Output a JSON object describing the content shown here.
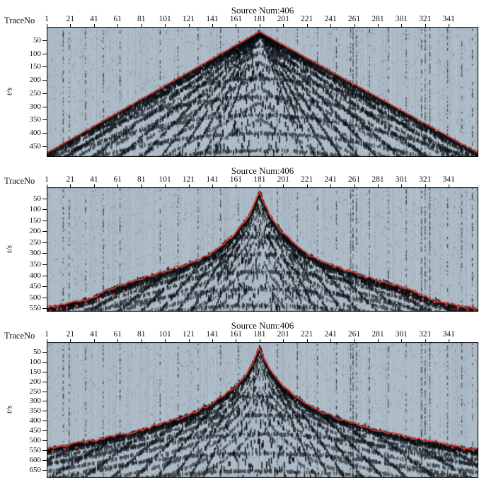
{
  "figure": {
    "background": "#ffffff",
    "plot_bg": "#b7c5d1",
    "pick_color": "#e23b2e",
    "ink_color": "#0a0f14"
  },
  "chart_data": [
    {
      "type": "heatmap",
      "description": "Seismic shot gather (wiggle-trace variable-area display) with straight red first-break line forming an inverted V from the source at trace 181",
      "title": "Source Num:406",
      "xlabel": "TraceNo",
      "ylabel": "t/s",
      "x_ticks": [
        1,
        21,
        41,
        61,
        81,
        101,
        121,
        141,
        161,
        181,
        201,
        221,
        241,
        261,
        281,
        301,
        321,
        341
      ],
      "x_range": [
        1,
        366
      ],
      "y_ticks": [
        50,
        100,
        150,
        200,
        250,
        300,
        350,
        400,
        450
      ],
      "y_range": [
        0,
        490
      ],
      "apex_trace": 181,
      "pick_style": "straight-line",
      "first_break_picks": [
        [
          1,
          475
        ],
        [
          181,
          18
        ],
        [
          366,
          475
        ]
      ],
      "outlier_picks": []
    },
    {
      "type": "heatmap",
      "description": "Seismic shot gather with irregular automatically picked first breaks (red) and scattered outlier picks near the far offsets",
      "title": "Source Num:406",
      "xlabel": "TraceNo",
      "ylabel": "t/s",
      "x_ticks": [
        1,
        21,
        41,
        61,
        81,
        101,
        121,
        141,
        161,
        181,
        201,
        221,
        241,
        261,
        281,
        301,
        321,
        341
      ],
      "x_range": [
        1,
        366
      ],
      "y_ticks": [
        50,
        100,
        150,
        200,
        250,
        300,
        350,
        400,
        450,
        500,
        550
      ],
      "y_range": [
        0,
        565
      ],
      "apex_trace": 181,
      "pick_style": "picked-irregular",
      "first_break_picks": [
        [
          1,
          545
        ],
        [
          11,
          537
        ],
        [
          21,
          524
        ],
        [
          31,
          514
        ],
        [
          41,
          497
        ],
        [
          51,
          467
        ],
        [
          61,
          447
        ],
        [
          71,
          431
        ],
        [
          81,
          413
        ],
        [
          91,
          398
        ],
        [
          101,
          382
        ],
        [
          111,
          365
        ],
        [
          121,
          347
        ],
        [
          131,
          326
        ],
        [
          141,
          298
        ],
        [
          151,
          257
        ],
        [
          161,
          206
        ],
        [
          171,
          137
        ],
        [
          176,
          84
        ],
        [
          181,
          24
        ],
        [
          186,
          86
        ],
        [
          191,
          140
        ],
        [
          201,
          210
        ],
        [
          211,
          260
        ],
        [
          221,
          301
        ],
        [
          231,
          331
        ],
        [
          241,
          354
        ],
        [
          251,
          372
        ],
        [
          261,
          389
        ],
        [
          271,
          405
        ],
        [
          281,
          421
        ],
        [
          291,
          437
        ],
        [
          301,
          453
        ],
        [
          311,
          472
        ],
        [
          321,
          498
        ],
        [
          331,
          518
        ],
        [
          341,
          529
        ],
        [
          351,
          540
        ],
        [
          361,
          549
        ],
        [
          366,
          552
        ]
      ],
      "outlier_picks": [
        [
          4,
          562
        ],
        [
          10,
          554
        ],
        [
          18,
          546
        ],
        [
          26,
          538
        ],
        [
          34,
          528
        ],
        [
          44,
          514
        ],
        [
          58,
          492
        ],
        [
          66,
          470
        ],
        [
          299,
          468
        ],
        [
          309,
          484
        ],
        [
          319,
          506
        ],
        [
          329,
          522
        ],
        [
          339,
          536
        ],
        [
          349,
          548
        ],
        [
          357,
          556
        ],
        [
          363,
          561
        ]
      ]
    },
    {
      "type": "heatmap",
      "description": "Seismic shot gather with smoothed refined first-break picks (red line) after editing",
      "title": "Source Num:406",
      "xlabel": "TraceNo",
      "ylabel": "t/s",
      "x_ticks": [
        1,
        21,
        41,
        61,
        81,
        101,
        121,
        141,
        161,
        181,
        201,
        221,
        241,
        261,
        281,
        301,
        321,
        341
      ],
      "x_range": [
        1,
        366
      ],
      "y_ticks": [
        50,
        100,
        150,
        200,
        250,
        300,
        350,
        400,
        450,
        500,
        550,
        600,
        650
      ],
      "y_range": [
        0,
        690
      ],
      "apex_trace": 181,
      "pick_style": "picked-irregular",
      "first_break_picks": [
        [
          1,
          540
        ],
        [
          11,
          531
        ],
        [
          21,
          521
        ],
        [
          31,
          511
        ],
        [
          41,
          500
        ],
        [
          51,
          488
        ],
        [
          61,
          475
        ],
        [
          71,
          461
        ],
        [
          81,
          446
        ],
        [
          91,
          429
        ],
        [
          101,
          411
        ],
        [
          111,
          391
        ],
        [
          121,
          368
        ],
        [
          131,
          342
        ],
        [
          141,
          311
        ],
        [
          151,
          272
        ],
        [
          161,
          222
        ],
        [
          171,
          155
        ],
        [
          176,
          98
        ],
        [
          181,
          26
        ],
        [
          186,
          100
        ],
        [
          191,
          158
        ],
        [
          201,
          226
        ],
        [
          211,
          276
        ],
        [
          221,
          315
        ],
        [
          231,
          346
        ],
        [
          241,
          372
        ],
        [
          251,
          394
        ],
        [
          261,
          413
        ],
        [
          271,
          431
        ],
        [
          281,
          448
        ],
        [
          291,
          463
        ],
        [
          301,
          477
        ],
        [
          311,
          490
        ],
        [
          321,
          502
        ],
        [
          331,
          513
        ],
        [
          341,
          523
        ],
        [
          351,
          533
        ],
        [
          361,
          541
        ],
        [
          366,
          545
        ]
      ],
      "outlier_picks": [
        [
          6,
          554
        ],
        [
          16,
          545
        ],
        [
          26,
          536
        ],
        [
          344,
          536
        ],
        [
          354,
          546
        ],
        [
          362,
          552
        ]
      ]
    }
  ]
}
